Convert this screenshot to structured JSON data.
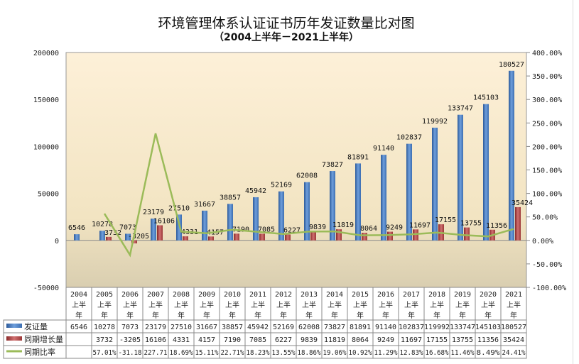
{
  "chart_data": {
    "type": "bar+line",
    "title": "环境管理体系认证证书历年发证数量比对图",
    "subtitle": "（2004上半年－2021上半年）",
    "categories": [
      "2004上半年",
      "2005上半年",
      "2006上半年",
      "2007上半年",
      "2008上半年",
      "2009上半年",
      "2010上半年",
      "2011上半年",
      "2012上半年",
      "2013上半年",
      "2014上半年",
      "2015上半年",
      "2016上半年",
      "2017上半年",
      "2018上半年",
      "2019上半年",
      "2020上半年",
      "2021上半年"
    ],
    "year_labels": [
      "2004",
      "2005",
      "2006",
      "2007",
      "2008",
      "2009",
      "2010",
      "2011",
      "2012",
      "2013",
      "2014",
      "2015",
      "2016",
      "2017",
      "2018",
      "2019",
      "2020",
      "2021"
    ],
    "half_label_1": "上半",
    "half_label_2": "年",
    "series": [
      {
        "name": "发证量",
        "type": "bar",
        "axis": "left",
        "color": "#4a7ec4",
        "values": [
          6546,
          10278,
          7073,
          23179,
          27510,
          31667,
          38857,
          45942,
          52169,
          62008,
          73827,
          81891,
          91140,
          102837,
          119992,
          133747,
          145103,
          180527
        ]
      },
      {
        "name": "同期增长量",
        "type": "bar",
        "axis": "left",
        "color": "#b04a4a",
        "values": [
          null,
          3732,
          -3205,
          16106,
          4331,
          4157,
          7190,
          7085,
          6227,
          9839,
          11819,
          8064,
          9249,
          11697,
          17155,
          13755,
          11356,
          35424
        ]
      },
      {
        "name": "同期比率",
        "type": "line",
        "axis": "right",
        "color": "#9bbb59",
        "values": [
          null,
          57.01,
          -31.18,
          227.71,
          18.69,
          15.11,
          22.71,
          18.23,
          13.55,
          18.86,
          19.06,
          10.92,
          11.29,
          12.83,
          16.68,
          11.46,
          8.49,
          24.41
        ],
        "table_labels": [
          "",
          "57.01%",
          "-31.18",
          "227.71",
          "18.69%",
          "15.11%",
          "22.71%",
          "18.23%",
          "13.55%",
          "18.86%",
          "19.06%",
          "10.92%",
          "11.29%",
          "12.83%",
          "16.68%",
          "11.46%",
          "8.49%",
          "24.41%"
        ]
      }
    ],
    "ylim_left": [
      -50000,
      200000
    ],
    "yticks_left": [
      "200000",
      "150000",
      "100000",
      "50000",
      "0",
      "-50000"
    ],
    "ylim_right": [
      -100,
      400
    ],
    "yticks_right": [
      "400.00%",
      "350.00%",
      "300.00%",
      "250.00%",
      "200.00%",
      "150.00%",
      "100.00%",
      "50.00%",
      "0.00%",
      "-50.00%",
      "-100.00%"
    ],
    "legend": "data-table",
    "grid": false
  }
}
